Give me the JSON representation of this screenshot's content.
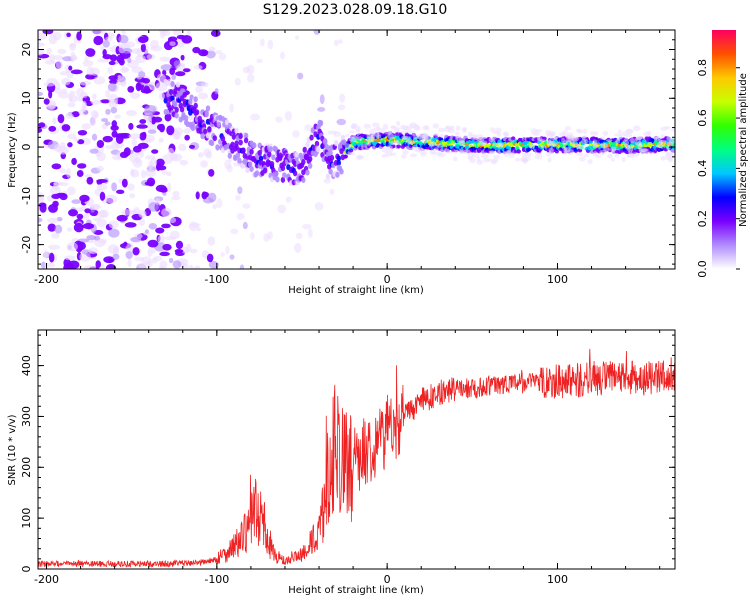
{
  "figure": {
    "title": "S129.2023.028.09.18.G10"
  },
  "chart_data": [
    {
      "type": "heatmap",
      "name": "spectrogram",
      "xlabel": "Height of straight line (km)",
      "ylabel": "Frequency (Hz)",
      "xlim": [
        -205,
        169
      ],
      "ylim": [
        -25,
        24
      ],
      "x_ticks": [
        -200,
        -100,
        0,
        100
      ],
      "y_ticks": [
        -20,
        -10,
        0,
        10,
        20
      ],
      "colorbar": {
        "label": "Normalized spectral amplitude",
        "range": [
          0,
          0.95
        ],
        "ticks": [
          "0.0",
          "0.2",
          "0.4",
          "0.6",
          "0.8"
        ],
        "colors": [
          "#ffffff",
          "#b08cff",
          "#7a00ff",
          "#0000ff",
          "#00c8ff",
          "#00ff80",
          "#30ff00",
          "#c8ff00",
          "#ffc800",
          "#ff5000",
          "#ff0060"
        ]
      },
      "ridge": [
        {
          "x": -125,
          "f": 10
        },
        {
          "x": -110,
          "f": 6
        },
        {
          "x": -100,
          "f": 3
        },
        {
          "x": -90,
          "f": 1
        },
        {
          "x": -80,
          "f": -2
        },
        {
          "x": -70,
          "f": -3
        },
        {
          "x": -60,
          "f": -4
        },
        {
          "x": -50,
          "f": -5
        },
        {
          "x": -40,
          "f": 3
        },
        {
          "x": -35,
          "f": -3
        },
        {
          "x": -27,
          "f": -2
        },
        {
          "x": -20,
          "f": 1
        },
        {
          "x": 0,
          "f": 1.5
        },
        {
          "x": 30,
          "f": 0.8
        },
        {
          "x": 60,
          "f": 0.3
        },
        {
          "x": 100,
          "f": 0.5
        },
        {
          "x": 140,
          "f": 0.3
        },
        {
          "x": 169,
          "f": 0.6
        }
      ]
    },
    {
      "type": "line",
      "name": "snr",
      "xlabel": "Height of straight line (km)",
      "ylabel": "SNR (10 * v/v)",
      "xlim": [
        -205,
        169
      ],
      "ylim": [
        0,
        470
      ],
      "x_ticks": [
        -200,
        -100,
        0,
        100
      ],
      "y_ticks": [
        0,
        100,
        200,
        300,
        400
      ],
      "color": "#ee2222",
      "series": [
        {
          "x": [
            -205,
            -190,
            -170,
            -150,
            -130,
            -115,
            -105,
            -100,
            -95,
            -90,
            -85,
            -80,
            -78,
            -75,
            -72,
            -70,
            -65,
            -60,
            -55,
            -50,
            -45,
            -40,
            -37,
            -35,
            -32,
            -30,
            -27,
            -25,
            -22,
            -20,
            -15,
            -10,
            -5,
            0,
            10,
            20,
            30,
            40,
            50,
            60,
            70,
            80,
            90,
            100,
            110,
            120,
            130,
            140,
            150,
            160,
            169
          ],
          "y": [
            10,
            10,
            10,
            10,
            10,
            12,
            15,
            20,
            30,
            45,
            60,
            90,
            120,
            110,
            85,
            50,
            25,
            15,
            20,
            30,
            50,
            70,
            120,
            180,
            230,
            250,
            230,
            200,
            200,
            210,
            225,
            240,
            255,
            270,
            300,
            330,
            345,
            355,
            355,
            360,
            365,
            365,
            370,
            370,
            370,
            375,
            375,
            375,
            375,
            375,
            375
          ]
        }
      ]
    }
  ]
}
